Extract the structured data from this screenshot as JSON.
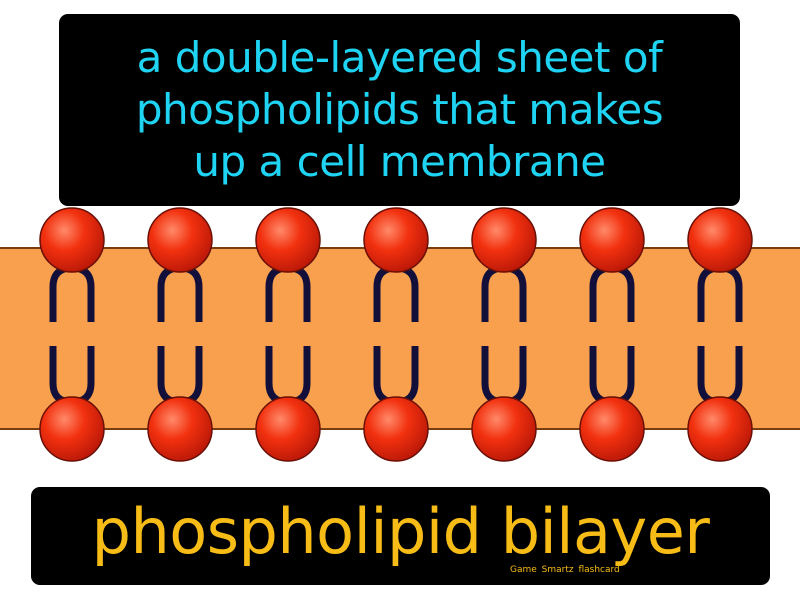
{
  "definition": {
    "text": "a double-layered sheet of\nphospholipids that makes\nup a cell membrane"
  },
  "term": {
    "text": "phospholipid bilayer"
  },
  "credit": {
    "text": "Game Smartz flashcard"
  },
  "diagram": {
    "phospholipid_count": 7,
    "colors": {
      "membrane": "#f9a04f",
      "membrane_edge": "#7a3d10",
      "head": "#e8200d",
      "head_highlight": "#ff8a6a",
      "head_outline": "#6b0f05",
      "tail": "#12103a",
      "definition_text": "#1fd3f2",
      "term_text": "#f8bc16",
      "box": "#000000"
    }
  }
}
